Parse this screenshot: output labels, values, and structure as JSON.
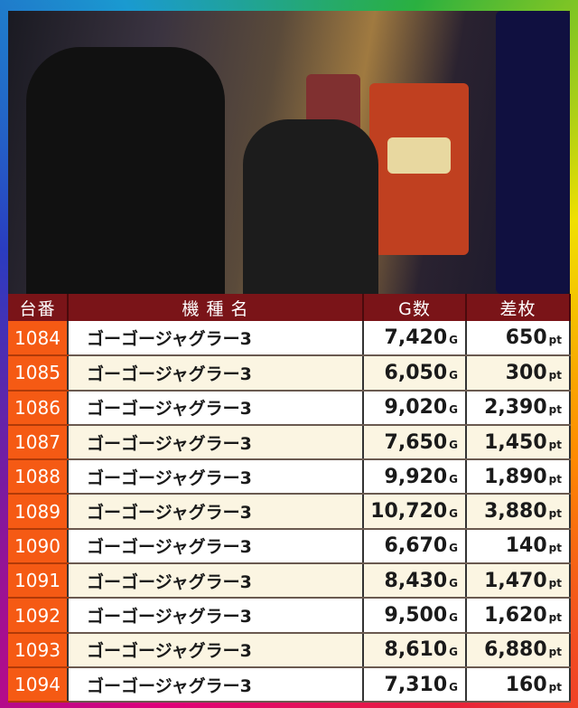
{
  "headers": {
    "no": "台番",
    "name": "機 種 名",
    "games": "G数",
    "diff": "差枚"
  },
  "units": {
    "games": "G",
    "diff": "pt"
  },
  "rows": [
    {
      "no": "1084",
      "name": "ゴーゴージャグラー3",
      "games": "7,420",
      "diff": "650"
    },
    {
      "no": "1085",
      "name": "ゴーゴージャグラー3",
      "games": "6,050",
      "diff": "300"
    },
    {
      "no": "1086",
      "name": "ゴーゴージャグラー3",
      "games": "9,020",
      "diff": "2,390"
    },
    {
      "no": "1087",
      "name": "ゴーゴージャグラー3",
      "games": "7,650",
      "diff": "1,450"
    },
    {
      "no": "1088",
      "name": "ゴーゴージャグラー3",
      "games": "9,920",
      "diff": "1,890"
    },
    {
      "no": "1089",
      "name": "ゴーゴージャグラー3",
      "games": "10,720",
      "diff": "3,880"
    },
    {
      "no": "1090",
      "name": "ゴーゴージャグラー3",
      "games": "6,670",
      "diff": "140"
    },
    {
      "no": "1091",
      "name": "ゴーゴージャグラー3",
      "games": "8,430",
      "diff": "1,470"
    },
    {
      "no": "1092",
      "name": "ゴーゴージャグラー3",
      "games": "9,500",
      "diff": "1,620"
    },
    {
      "no": "1093",
      "name": "ゴーゴージャグラー3",
      "games": "8,610",
      "diff": "6,880"
    },
    {
      "no": "1094",
      "name": "ゴーゴージャグラー3",
      "games": "7,310",
      "diff": "160"
    }
  ]
}
